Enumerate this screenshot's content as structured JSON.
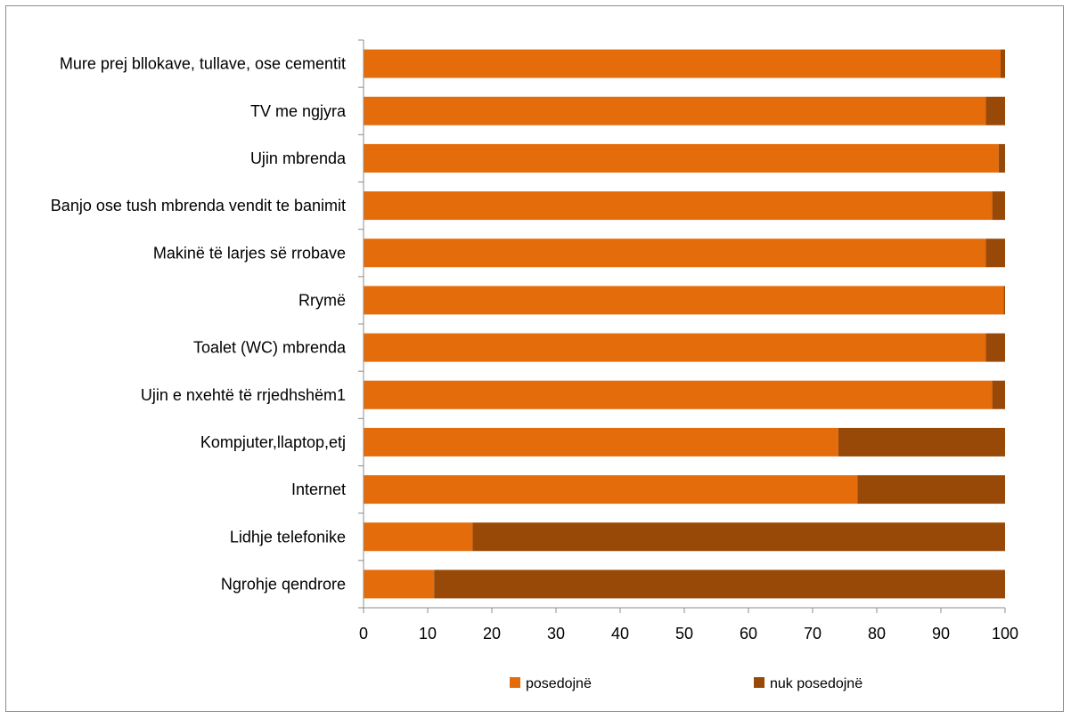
{
  "chart_data": {
    "type": "bar",
    "orientation": "horizontal",
    "stacked": true,
    "title": "",
    "xlabel": "",
    "ylabel": "",
    "xlim": [
      0,
      100
    ],
    "xticks": [
      0,
      10,
      20,
      30,
      40,
      50,
      60,
      70,
      80,
      90,
      100
    ],
    "grid": false,
    "legend_position": "bottom",
    "categories": [
      "Mure prej bllokave, tullave, ose cementit",
      "TV me ngjyra",
      "Ujin mbrenda",
      "Banjo ose tush mbrenda vendit te banimit",
      "Makinë të larjes së rrobave",
      "Rrymë",
      "Toalet (WC) mbrenda",
      "Ujin e nxehtë të rrjedhshëm1",
      "Kompjuter,llaptop,etj",
      "Internet",
      "Lidhje telefonike",
      "Ngrohje qendrore"
    ],
    "series": [
      {
        "name": "posedojnë",
        "color": "#e46c0a",
        "values": [
          99.3,
          97,
          99,
          98,
          97,
          99.8,
          97,
          98,
          74,
          77,
          17,
          11
        ]
      },
      {
        "name": "nuk posedojnë",
        "color": "#984807",
        "values": [
          0.7,
          3,
          1,
          2,
          3,
          0.2,
          3,
          2,
          26,
          23,
          83,
          89
        ]
      }
    ]
  }
}
